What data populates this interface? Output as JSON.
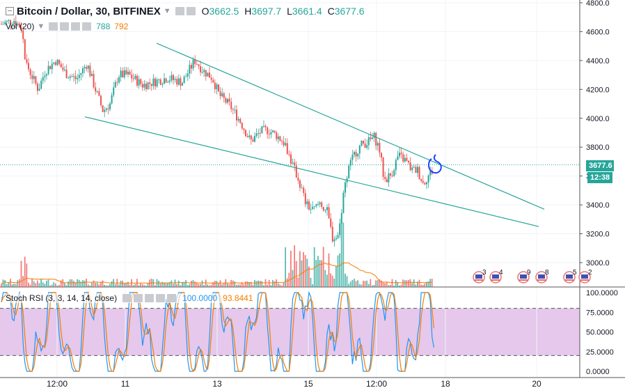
{
  "header": {
    "symbol_title": "Bitcoin / Dollar, 30, BITFINEX",
    "open_label": "O",
    "open_value": "3662.5",
    "high_label": "H",
    "high_value": "3697.7",
    "low_label": "L",
    "low_value": "3661.4",
    "close_label": "C",
    "close_value": "3677.6"
  },
  "volume": {
    "label": "Vol (20)",
    "value1": "788",
    "value2": "792"
  },
  "stoch": {
    "label": "Stoch RSI (3, 3, 14, 14, close)",
    "k_value": "100.0000",
    "d_value": "93.8441"
  },
  "price_tag": {
    "price": "3677.6",
    "countdown": "12:38"
  },
  "events": [
    "3",
    "4",
    "9",
    "8",
    "5",
    "2"
  ],
  "colors": {
    "up": "#26a69a",
    "down": "#ef5350",
    "trendline": "#26a69a",
    "band": "#e1bee7",
    "k_line": "#2196f3",
    "d_line": "#f57c00",
    "annotation": "#1e40ff"
  },
  "chart_data": [
    {
      "type": "candlestick",
      "title": "Bitcoin / Dollar, 30, BITFINEX",
      "ylim": [
        2850,
        4800
      ],
      "y_ticks": [
        "4800.0",
        "4600.0",
        "4400.0",
        "4200.0",
        "4000.0",
        "3800.0",
        "3600.0",
        "3400.0",
        "3200.0",
        "3000.0"
      ],
      "x_ticks": [
        "12:00",
        "11",
        "13",
        "15",
        "12:00",
        "18",
        "20"
      ],
      "grid": true,
      "last_price": 3677.6,
      "path_points": [
        [
          0,
          4650
        ],
        [
          20,
          4680
        ],
        [
          32,
          4620
        ],
        [
          36,
          4400
        ],
        [
          45,
          4300
        ],
        [
          55,
          4200
        ],
        [
          65,
          4330
        ],
        [
          80,
          4400
        ],
        [
          95,
          4310
        ],
        [
          110,
          4270
        ],
        [
          125,
          4380
        ],
        [
          135,
          4230
        ],
        [
          148,
          4050
        ],
        [
          158,
          4100
        ],
        [
          170,
          4300
        ],
        [
          185,
          4300
        ],
        [
          205,
          4230
        ],
        [
          220,
          4250
        ],
        [
          240,
          4280
        ],
        [
          262,
          4250
        ],
        [
          280,
          4400
        ],
        [
          292,
          4330
        ],
        [
          305,
          4280
        ],
        [
          315,
          4160
        ],
        [
          330,
          4090
        ],
        [
          345,
          3980
        ],
        [
          360,
          3840
        ],
        [
          375,
          3910
        ],
        [
          385,
          3920
        ],
        [
          398,
          3880
        ],
        [
          410,
          3820
        ],
        [
          420,
          3680
        ],
        [
          430,
          3560
        ],
        [
          440,
          3400
        ],
        [
          450,
          3360
        ],
        [
          460,
          3420
        ],
        [
          470,
          3350
        ],
        [
          478,
          3170
        ],
        [
          486,
          3180
        ],
        [
          494,
          3480
        ],
        [
          500,
          3640
        ],
        [
          510,
          3760
        ],
        [
          520,
          3820
        ],
        [
          530,
          3840
        ],
        [
          538,
          3870
        ],
        [
          545,
          3790
        ],
        [
          552,
          3570
        ],
        [
          562,
          3610
        ],
        [
          572,
          3740
        ],
        [
          582,
          3710
        ],
        [
          592,
          3640
        ],
        [
          600,
          3640
        ],
        [
          608,
          3550
        ],
        [
          615,
          3600
        ],
        [
          622,
          3640
        ]
      ],
      "trendlines": [
        {
          "name": "upper",
          "x1": 225,
          "y1": 4520,
          "x2": 782,
          "y2": 3370
        },
        {
          "name": "lower",
          "x1": 122,
          "y1": 4010,
          "x2": 774,
          "y2": 3250
        }
      ]
    },
    {
      "type": "bar",
      "title": "Vol (20)",
      "series": [
        {
          "name": "788",
          "role": "volume"
        },
        {
          "name": "792",
          "role": "volume moving average"
        }
      ]
    },
    {
      "type": "line",
      "title": "Stoch RSI (3, 3, 14, 14, close)",
      "ylim": [
        0,
        100
      ],
      "y_ticks": [
        "100.0000",
        "75.0000",
        "50.0000",
        "25.0000",
        "0.0000"
      ],
      "band": [
        20,
        80
      ],
      "series": [
        {
          "name": "100.0000",
          "role": "K"
        },
        {
          "name": "93.8441",
          "role": "D"
        }
      ]
    }
  ]
}
